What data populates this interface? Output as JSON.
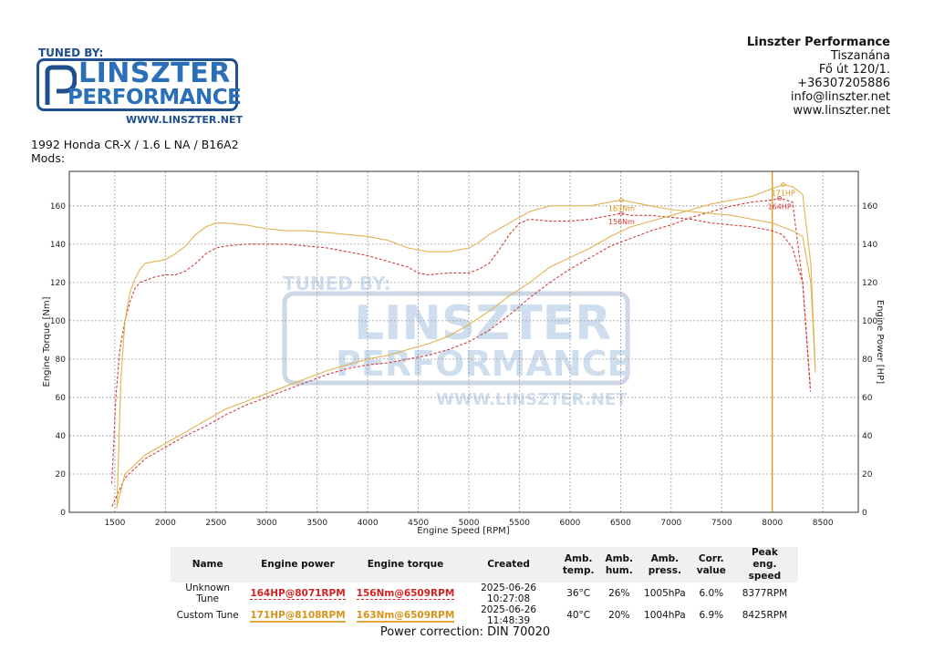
{
  "branding": {
    "tuned_by": "TUNED BY:",
    "logo_line1": "LINSZTER",
    "logo_line2": "PERFORMANCE",
    "url": "WWW.LINSZTER.NET"
  },
  "company": {
    "name": "Linszter Performance",
    "city": "Tiszanána",
    "street": "Fő út 120/1.",
    "phone": "+36307205886",
    "email": "info@linszter.net",
    "web": "www.linszter.net"
  },
  "vehicle": {
    "description": "1992 Honda CR-X / 1.6 L NA / B16A2",
    "mods": "Mods:"
  },
  "colors": {
    "unknown": "#d23c3c",
    "custom": "#e0b450",
    "marker": "#e0a020",
    "grid": "#9a9a9a"
  },
  "chart_data": {
    "type": "line",
    "xlabel": "Engine Speed [RPM]",
    "ylabel_left": "Engine Torque [Nm]",
    "ylabel_right": "Engine Power [HP]",
    "xlim": [
      1050,
      8850
    ],
    "ylim": [
      0,
      178
    ],
    "xticks": [
      1500,
      2000,
      2500,
      3000,
      3500,
      4000,
      4500,
      5000,
      5500,
      6000,
      6500,
      7000,
      7500,
      8000,
      8500
    ],
    "yticks": [
      0,
      20,
      40,
      60,
      80,
      100,
      120,
      140,
      160
    ],
    "grid": true,
    "vline_rpm": 8000,
    "series": [
      {
        "name": "Unknown Tune",
        "quantity": "torque",
        "color": "#d23c3c",
        "dash": "3,2",
        "x": [
          1470,
          1510,
          1550,
          1600,
          1650,
          1700,
          1750,
          1800,
          1900,
          2000,
          2100,
          2200,
          2300,
          2400,
          2500,
          2600,
          2800,
          3000,
          3200,
          3400,
          3600,
          3800,
          4000,
          4200,
          4400,
          4500,
          4600,
          4800,
          5000,
          5100,
          5200,
          5300,
          5400,
          5500,
          5600,
          5800,
          6000,
          6200,
          6400,
          6500,
          6600,
          6800,
          7000,
          7200,
          7400,
          7600,
          7800,
          8000,
          8100,
          8200,
          8300,
          8377
        ],
        "y": [
          15,
          60,
          85,
          100,
          110,
          117,
          120,
          121,
          123,
          124,
          124,
          126,
          130,
          135,
          138,
          139,
          140,
          140,
          140,
          139,
          138,
          136,
          134,
          131,
          128,
          125,
          124,
          125,
          125,
          127,
          130,
          137,
          145,
          151,
          153,
          152,
          152,
          153,
          155,
          156,
          155,
          155,
          154,
          153,
          151,
          150,
          149,
          147,
          145,
          138,
          120,
          63
        ]
      },
      {
        "name": "Unknown Tune",
        "quantity": "power",
        "color": "#d23c3c",
        "dash": "3,2",
        "x": [
          1470,
          1600,
          1800,
          2000,
          2200,
          2400,
          2600,
          2800,
          3000,
          3200,
          3400,
          3600,
          3800,
          4000,
          4200,
          4400,
          4600,
          4800,
          5000,
          5200,
          5400,
          5600,
          5800,
          6000,
          6200,
          6400,
          6600,
          6800,
          7000,
          7200,
          7400,
          7600,
          7800,
          8000,
          8071,
          8200,
          8300,
          8377
        ],
        "y": [
          3,
          18,
          28,
          34,
          40,
          45,
          51,
          56,
          60,
          64,
          68,
          72,
          75,
          77,
          78,
          80,
          82,
          85,
          89,
          95,
          103,
          112,
          120,
          127,
          133,
          139,
          143,
          147,
          150,
          154,
          157,
          160,
          162,
          163,
          164,
          162,
          120,
          65
        ]
      },
      {
        "name": "Custom Tune",
        "quantity": "torque",
        "color": "#e0b450",
        "dash": "",
        "x": [
          1520,
          1560,
          1600,
          1650,
          1700,
          1750,
          1800,
          1900,
          2000,
          2100,
          2200,
          2300,
          2400,
          2500,
          2600,
          2800,
          3000,
          3200,
          3400,
          3600,
          3800,
          4000,
          4200,
          4400,
          4600,
          4800,
          5000,
          5100,
          5200,
          5400,
          5600,
          5800,
          6000,
          6200,
          6400,
          6509,
          6600,
          6800,
          7000,
          7200,
          7400,
          7600,
          7800,
          8000,
          8100,
          8200,
          8300,
          8380,
          8425
        ],
        "y": [
          2,
          70,
          100,
          115,
          122,
          127,
          130,
          131,
          132,
          135,
          139,
          145,
          149,
          151,
          151,
          150,
          148,
          147,
          147,
          146,
          145,
          144,
          142,
          138,
          136,
          136,
          138,
          141,
          145,
          151,
          157,
          160,
          160,
          160,
          162,
          163,
          162,
          160,
          158,
          157,
          156,
          155,
          153,
          151,
          149,
          147,
          144,
          120,
          73
        ]
      },
      {
        "name": "Custom Tune",
        "quantity": "power",
        "color": "#e0b450",
        "dash": "",
        "x": [
          1520,
          1600,
          1800,
          2000,
          2200,
          2400,
          2600,
          2800,
          3000,
          3200,
          3400,
          3600,
          3800,
          4000,
          4200,
          4400,
          4600,
          4800,
          5000,
          5200,
          5400,
          5600,
          5800,
          6000,
          6200,
          6400,
          6600,
          6800,
          7000,
          7200,
          7400,
          7600,
          7800,
          8000,
          8108,
          8200,
          8300,
          8380,
          8425
        ],
        "y": [
          3,
          20,
          30,
          36,
          42,
          48,
          54,
          58,
          62,
          66,
          70,
          74,
          77,
          80,
          82,
          85,
          88,
          92,
          98,
          105,
          113,
          120,
          128,
          133,
          138,
          144,
          149,
          152,
          155,
          158,
          161,
          163,
          165,
          169,
          171,
          170,
          166,
          130,
          75
        ]
      }
    ],
    "annotations": [
      {
        "text": "163Nm",
        "x": 6509,
        "y": 163,
        "color": "#d8941a",
        "dx": 0,
        "dy": 12
      },
      {
        "text": "156Nm",
        "x": 6509,
        "y": 156,
        "color": "#d23c3c",
        "dx": 0,
        "dy": 12
      },
      {
        "text": "171HP",
        "x": 8108,
        "y": 171,
        "color": "#d8941a",
        "dx": 0,
        "dy": 12
      },
      {
        "text": "164HP",
        "x": 8071,
        "y": 164,
        "color": "#d23c3c",
        "dx": 0,
        "dy": 12
      }
    ]
  },
  "table": {
    "headers": [
      [
        "Name"
      ],
      [
        "Engine power"
      ],
      [
        "Engine torque"
      ],
      [
        "Created"
      ],
      [
        "Amb.",
        "temp."
      ],
      [
        "Amb.",
        "hum."
      ],
      [
        "Amb.",
        "press."
      ],
      [
        "Corr.",
        "value"
      ],
      [
        "Peak",
        "eng. speed"
      ]
    ],
    "rows": [
      {
        "name": "Unknown Tune",
        "power": "164HP@8071RPM",
        "torque": "156Nm@6509RPM",
        "created": "2025-06-26 10:27:08",
        "temp": "36°C",
        "hum": "26%",
        "press": "1005hPa",
        "corr": "6.0%",
        "peak": "8377RPM"
      },
      {
        "name": "Custom Tune",
        "power": "171HP@8108RPM",
        "torque": "163Nm@6509RPM",
        "created": "2025-06-26 11:48:39",
        "temp": "40°C",
        "hum": "20%",
        "press": "1004hPa",
        "corr": "6.9%",
        "peak": "8425RPM"
      }
    ]
  },
  "footer": {
    "correction": "Power correction: DIN 70020"
  }
}
